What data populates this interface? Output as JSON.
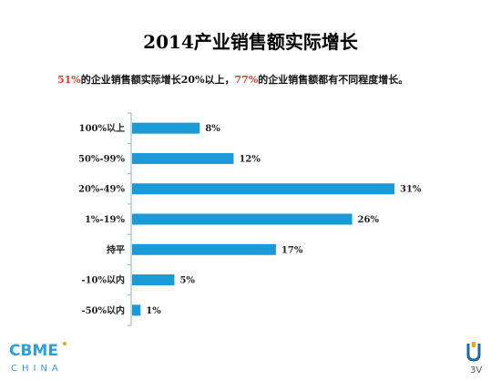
{
  "title": "2014产业销售额实际增长",
  "subtitle": {
    "pct1": "51%",
    "text1": "的企业销售额实际增长20%以上，",
    "pct2": "77%",
    "text2": "的企业销售额都有不同程度增长。"
  },
  "colors": {
    "bar": "#1a9ad6",
    "highlight": "#e23b2a",
    "axis": "#8ab5d6"
  },
  "chart_data": {
    "type": "bar",
    "orientation": "horizontal",
    "categories": [
      "100%以上",
      "50%-99%",
      "20%-49%",
      "1%-19%",
      "持平",
      "-10%以内",
      "-50%以内"
    ],
    "values": [
      8,
      12,
      31,
      26,
      17,
      5,
      1
    ],
    "value_labels": [
      "8%",
      "12%",
      "31%",
      "26%",
      "17%",
      "5%",
      "1%"
    ],
    "xlim": [
      0,
      32
    ],
    "grid": false,
    "legend": "none"
  },
  "footer": {
    "logo_text": "CBME",
    "logo_sub": "CHINA",
    "corner_text": "3V"
  }
}
